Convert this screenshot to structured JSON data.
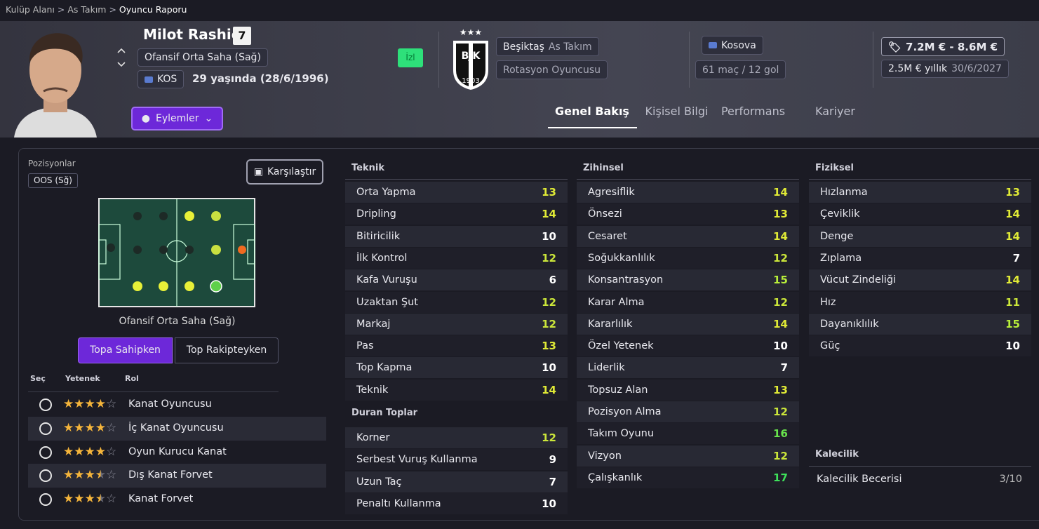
{
  "breadcrumb": [
    "Kulüp Alanı",
    "As Takım",
    "Oyuncu Raporu"
  ],
  "player": {
    "name": "Milot Rashica",
    "number": "7",
    "position": "Ofansif Orta Saha (Sağ)",
    "nation": "KOS",
    "age": "29 yaşında (28/6/1996)",
    "follow": "İzl",
    "actions": "Eylemler"
  },
  "club": {
    "name": "Beşiktaş",
    "team": "As Takım",
    "status": "Rotasyon Oyuncusu"
  },
  "nation_info": {
    "country": "Kosova",
    "record": "61 maç / 12 gol"
  },
  "contract": {
    "value": "7.2M € - 8.6M €",
    "wage": "2.5M € yıllık",
    "expiry": "30/6/2027"
  },
  "tabs": [
    "Genel Bakış",
    "Kişisel Bilgi",
    "Performans",
    "Kariyer"
  ],
  "positions": {
    "label": "Pozisyonlar",
    "tag": "OOS (Sğ)",
    "compare": "Karşılaştır",
    "caption": "Ofansif Orta Saha (Sağ)"
  },
  "toggles": [
    "Topa Sahipken",
    "Top Rakipteyken"
  ],
  "roles": {
    "headers": [
      "Seç",
      "Yetenek",
      "Rol"
    ],
    "rows": [
      {
        "name": "Kanat Oyuncusu",
        "rating": 4
      },
      {
        "name": "İç Kanat Oyuncusu",
        "rating": 4
      },
      {
        "name": "Oyun Kurucu Kanat",
        "rating": 4
      },
      {
        "name": "Dış Kanat Forvet",
        "rating": 3.5
      },
      {
        "name": "Kanat Forvet",
        "rating": 3.5
      }
    ]
  },
  "attributes": [
    {
      "title": "Teknik",
      "items": [
        {
          "name": "Orta Yapma",
          "value": 13
        },
        {
          "name": "Dripling",
          "value": 14
        },
        {
          "name": "Bitiricilik",
          "value": 10
        },
        {
          "name": "İlk Kontrol",
          "value": 12
        },
        {
          "name": "Kafa Vuruşu",
          "value": 6
        },
        {
          "name": "Uzaktan Şut",
          "value": 12
        },
        {
          "name": "Markaj",
          "value": 12
        },
        {
          "name": "Pas",
          "value": 13
        },
        {
          "name": "Top Kapma",
          "value": 10
        },
        {
          "name": "Teknik",
          "value": 14
        }
      ]
    },
    {
      "title": "Duran Toplar",
      "items": [
        {
          "name": "Korner",
          "value": 12
        },
        {
          "name": "Serbest Vuruş Kullanma",
          "value": 9
        },
        {
          "name": "Uzun Taç",
          "value": 7
        },
        {
          "name": "Penaltı Kullanma",
          "value": 10
        }
      ]
    },
    {
      "title": "Zihinsel",
      "items": [
        {
          "name": "Agresiflik",
          "value": 14
        },
        {
          "name": "Önsezi",
          "value": 13
        },
        {
          "name": "Cesaret",
          "value": 14
        },
        {
          "name": "Soğukkanlılık",
          "value": 12
        },
        {
          "name": "Konsantrasyon",
          "value": 15
        },
        {
          "name": "Karar Alma",
          "value": 12
        },
        {
          "name": "Kararlılık",
          "value": 14
        },
        {
          "name": "Özel Yetenek",
          "value": 10
        },
        {
          "name": "Liderlik",
          "value": 7
        },
        {
          "name": "Topsuz Alan",
          "value": 13
        },
        {
          "name": "Pozisyon Alma",
          "value": 12
        },
        {
          "name": "Takım Oyunu",
          "value": 16
        },
        {
          "name": "Vizyon",
          "value": 12
        },
        {
          "name": "Çalışkanlık",
          "value": 17
        }
      ]
    },
    {
      "title": "Fiziksel",
      "items": [
        {
          "name": "Hızlanma",
          "value": 13
        },
        {
          "name": "Çeviklik",
          "value": 14
        },
        {
          "name": "Denge",
          "value": 14
        },
        {
          "name": "Zıplama",
          "value": 7
        },
        {
          "name": "Vücut Zindeliği",
          "value": 14
        },
        {
          "name": "Hız",
          "value": 11
        },
        {
          "name": "Dayanıklılık",
          "value": 15
        },
        {
          "name": "Güç",
          "value": 10
        }
      ]
    }
  ],
  "goalkeeping": {
    "title": "Kalecilik",
    "label": "Kalecilik Becerisi",
    "value": "3/10"
  }
}
